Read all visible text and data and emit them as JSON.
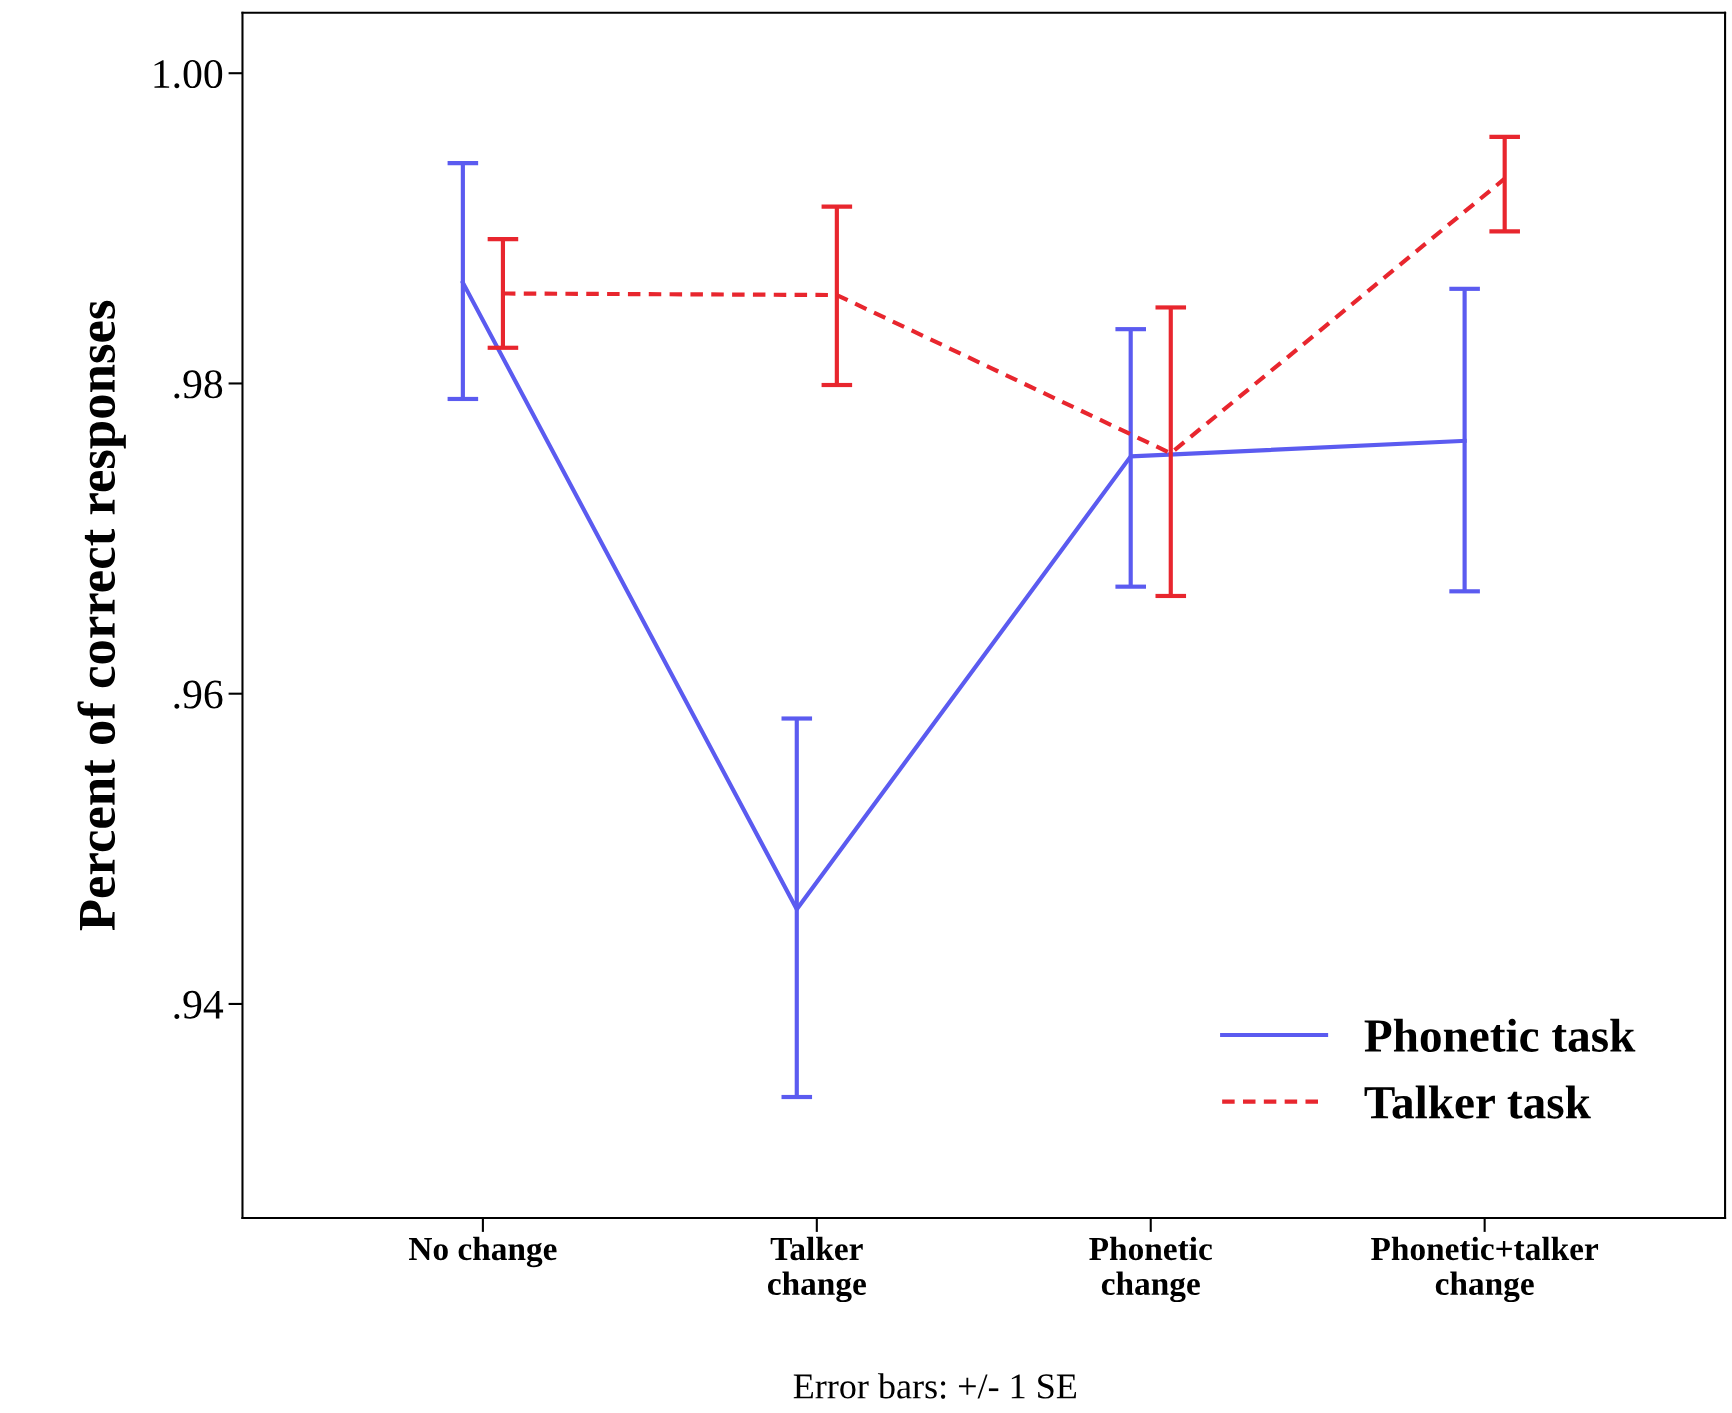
{
  "chart_data": {
    "type": "line",
    "ylabel": "Percent of correct responses",
    "categories": [
      "No change",
      "Talker change",
      "Phonetic change",
      "Phonetic+talker change"
    ],
    "series": [
      {
        "name": "Phonetic task",
        "color": "#5b5bf0",
        "line_style": "solid",
        "values": [
          0.9865,
          0.9461,
          0.9753,
          0.9763
        ],
        "errors": [
          [
            0.979,
            0.9942
          ],
          [
            0.934,
            0.9584
          ],
          [
            0.9669,
            0.9835
          ],
          [
            0.9666,
            0.9861
          ]
        ]
      },
      {
        "name": "Talker task",
        "color": "#e8262e",
        "line_style": "dashed",
        "values": [
          0.9858,
          0.9857,
          0.9755,
          0.9932
        ],
        "errors": [
          [
            0.9823,
            0.9893
          ],
          [
            0.9799,
            0.9914
          ],
          [
            0.9663,
            0.9849
          ],
          [
            0.9898,
            0.9959
          ]
        ]
      }
    ],
    "ylim": [
      0.9262,
      1.0039
    ],
    "yticks": [
      {
        "value": 0.94,
        "label": ".94"
      },
      {
        "value": 0.96,
        "label": ".96"
      },
      {
        "value": 0.98,
        "label": ".98"
      },
      {
        "value": 1.0,
        "label": "1.00"
      }
    ],
    "grid": false,
    "legend": "bottom right",
    "marker": "none",
    "annotations": [
      "Error bars: +/- 1 SE"
    ]
  }
}
